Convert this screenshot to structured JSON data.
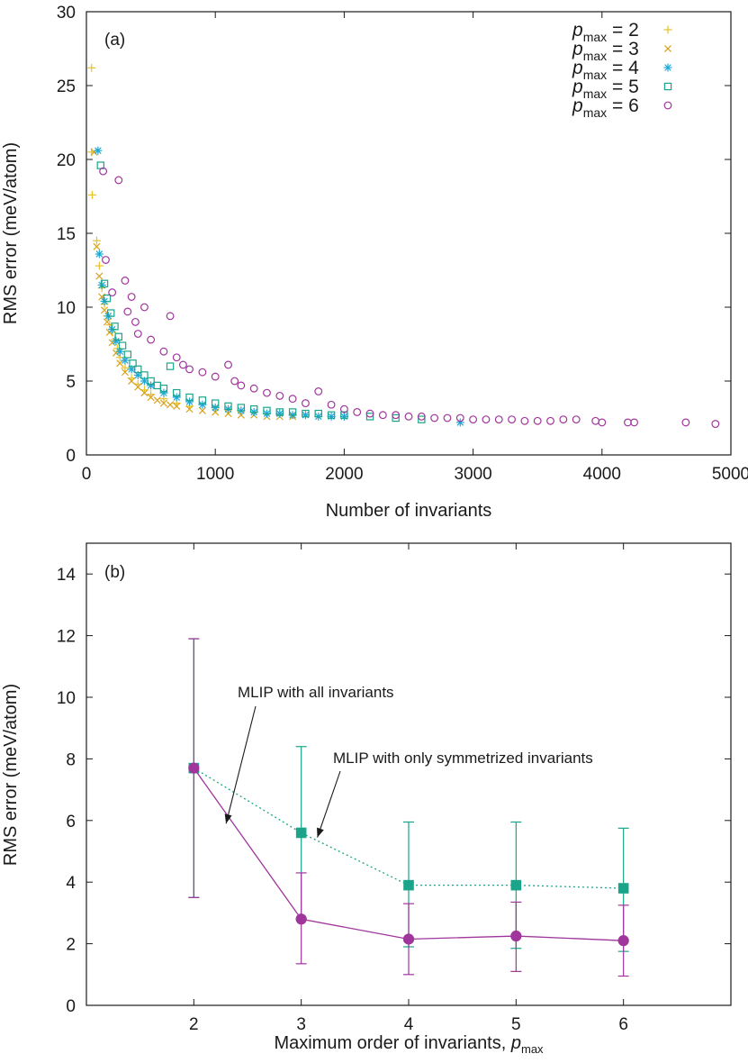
{
  "chart_data": [
    {
      "panel_label": "(a)",
      "type": "scatter",
      "xlabel": "Number of invariants",
      "ylabel": "RMS error (meV/atom)",
      "xlim": [
        0,
        5000
      ],
      "ylim": [
        0,
        30
      ],
      "xticks": [
        0,
        1000,
        2000,
        3000,
        4000,
        5000
      ],
      "yticks": [
        0,
        5,
        10,
        15,
        20,
        25,
        30
      ],
      "legend": {
        "position": "top-right",
        "symbol": "p",
        "subscript": "max",
        "entries": [
          "p_max = 2",
          "p_max = 3",
          "p_max = 4",
          "p_max = 5",
          "p_max = 6"
        ]
      },
      "series": [
        {
          "name": "p_max = 2",
          "value": "2",
          "marker": "plus",
          "color": "#e6c229",
          "points": [
            [
              40,
              26.2
            ],
            [
              40,
              20.5
            ],
            [
              45,
              17.6
            ],
            [
              80,
              14.5
            ],
            [
              100,
              12.8
            ],
            [
              120,
              11.3
            ],
            [
              140,
              10.2
            ],
            [
              160,
              9.4
            ],
            [
              180,
              8.8
            ],
            [
              200,
              8.3
            ],
            [
              220,
              7.8
            ],
            [
              240,
              7.2
            ],
            [
              260,
              6.6
            ],
            [
              300,
              5.9
            ],
            [
              350,
              5.2
            ],
            [
              400,
              4.8
            ],
            [
              450,
              4.4
            ],
            [
              500,
              4.1
            ],
            [
              600,
              3.8
            ],
            [
              700,
              3.5
            ],
            [
              800,
              3.3
            ]
          ]
        },
        {
          "name": "p_max = 3",
          "value": "3",
          "marker": "cross",
          "color": "#d9a21b",
          "points": [
            [
              60,
              20.5
            ],
            [
              80,
              14.1
            ],
            [
              100,
              12.1
            ],
            [
              120,
              10.7
            ],
            [
              140,
              9.8
            ],
            [
              160,
              9.0
            ],
            [
              180,
              8.3
            ],
            [
              200,
              7.6
            ],
            [
              230,
              6.9
            ],
            [
              260,
              6.2
            ],
            [
              300,
              5.6
            ],
            [
              350,
              5.0
            ],
            [
              400,
              4.6
            ],
            [
              450,
              4.2
            ],
            [
              500,
              3.9
            ],
            [
              550,
              3.7
            ],
            [
              600,
              3.5
            ],
            [
              650,
              3.4
            ],
            [
              700,
              3.3
            ],
            [
              800,
              3.1
            ],
            [
              900,
              3.0
            ],
            [
              1000,
              2.9
            ],
            [
              1100,
              2.8
            ],
            [
              1200,
              2.7
            ],
            [
              1300,
              2.7
            ],
            [
              1400,
              2.6
            ],
            [
              1500,
              2.6
            ],
            [
              1600,
              2.6
            ]
          ]
        },
        {
          "name": "p_max = 4",
          "value": "4",
          "marker": "star",
          "color": "#1fa8d6",
          "points": [
            [
              90,
              20.6
            ],
            [
              100,
              13.6
            ],
            [
              120,
              11.5
            ],
            [
              140,
              10.4
            ],
            [
              170,
              9.4
            ],
            [
              200,
              8.5
            ],
            [
              230,
              7.7
            ],
            [
              260,
              7.0
            ],
            [
              300,
              6.4
            ],
            [
              350,
              5.8
            ],
            [
              400,
              5.4
            ],
            [
              450,
              5.0
            ],
            [
              500,
              4.7
            ],
            [
              600,
              4.2
            ],
            [
              700,
              3.9
            ],
            [
              800,
              3.6
            ],
            [
              900,
              3.4
            ],
            [
              1000,
              3.2
            ],
            [
              1100,
              3.1
            ],
            [
              1200,
              3.0
            ],
            [
              1300,
              2.9
            ],
            [
              1400,
              2.8
            ],
            [
              1500,
              2.8
            ],
            [
              1600,
              2.7
            ],
            [
              1700,
              2.7
            ],
            [
              1800,
              2.6
            ],
            [
              1900,
              2.6
            ],
            [
              2000,
              2.6
            ],
            [
              2900,
              2.2
            ]
          ]
        },
        {
          "name": "p_max = 5",
          "value": "5",
          "marker": "square",
          "color": "#1aa58a",
          "points": [
            [
              110,
              19.6
            ],
            [
              140,
              11.6
            ],
            [
              160,
              10.6
            ],
            [
              190,
              9.6
            ],
            [
              220,
              8.7
            ],
            [
              250,
              8.0
            ],
            [
              280,
              7.4
            ],
            [
              320,
              6.8
            ],
            [
              360,
              6.2
            ],
            [
              400,
              5.8
            ],
            [
              450,
              5.4
            ],
            [
              500,
              5.0
            ],
            [
              550,
              4.7
            ],
            [
              600,
              4.5
            ],
            [
              650,
              6.0
            ],
            [
              700,
              4.2
            ],
            [
              800,
              3.9
            ],
            [
              900,
              3.7
            ],
            [
              1000,
              3.5
            ],
            [
              1100,
              3.3
            ],
            [
              1200,
              3.2
            ],
            [
              1300,
              3.1
            ],
            [
              1400,
              3.0
            ],
            [
              1500,
              2.9
            ],
            [
              1600,
              2.9
            ],
            [
              1700,
              2.8
            ],
            [
              1800,
              2.8
            ],
            [
              1900,
              2.7
            ],
            [
              2000,
              2.7
            ],
            [
              2200,
              2.6
            ],
            [
              2400,
              2.5
            ],
            [
              2600,
              2.4
            ]
          ]
        },
        {
          "name": "p_max = 6",
          "value": "6",
          "marker": "circle",
          "color": "#a0359c",
          "points": [
            [
              130,
              19.2
            ],
            [
              250,
              18.6
            ],
            [
              150,
              13.2
            ],
            [
              200,
              11.0
            ],
            [
              300,
              11.8
            ],
            [
              350,
              10.7
            ],
            [
              320,
              9.7
            ],
            [
              380,
              9.0
            ],
            [
              450,
              10.0
            ],
            [
              400,
              8.2
            ],
            [
              500,
              7.8
            ],
            [
              650,
              9.4
            ],
            [
              600,
              7.0
            ],
            [
              700,
              6.6
            ],
            [
              750,
              6.1
            ],
            [
              800,
              5.8
            ],
            [
              900,
              5.6
            ],
            [
              1000,
              5.3
            ],
            [
              1100,
              6.1
            ],
            [
              1150,
              5.0
            ],
            [
              1200,
              4.7
            ],
            [
              1300,
              4.5
            ],
            [
              1400,
              4.2
            ],
            [
              1500,
              4.0
            ],
            [
              1600,
              3.8
            ],
            [
              1700,
              3.5
            ],
            [
              1800,
              4.3
            ],
            [
              1900,
              3.4
            ],
            [
              2000,
              3.1
            ],
            [
              2100,
              2.9
            ],
            [
              2200,
              2.8
            ],
            [
              2300,
              2.7
            ],
            [
              2400,
              2.7
            ],
            [
              2500,
              2.6
            ],
            [
              2600,
              2.6
            ],
            [
              2700,
              2.5
            ],
            [
              2800,
              2.5
            ],
            [
              2900,
              2.5
            ],
            [
              3000,
              2.4
            ],
            [
              3100,
              2.4
            ],
            [
              3200,
              2.4
            ],
            [
              3300,
              2.4
            ],
            [
              3400,
              2.3
            ],
            [
              3500,
              2.3
            ],
            [
              3600,
              2.3
            ],
            [
              3700,
              2.4
            ],
            [
              3800,
              2.4
            ],
            [
              3950,
              2.3
            ],
            [
              4000,
              2.2
            ],
            [
              4200,
              2.2
            ],
            [
              4250,
              2.2
            ],
            [
              4650,
              2.2
            ],
            [
              4880,
              2.1
            ]
          ]
        }
      ]
    },
    {
      "panel_label": "(b)",
      "type": "line",
      "xlabel": "Maximum order of invariants, ",
      "xlabel_symbol": "p",
      "xlabel_subscript": "max",
      "ylabel": "RMS error (meV/atom)",
      "xlim": [
        1,
        7
      ],
      "ylim": [
        0,
        15
      ],
      "xticks": [
        2,
        3,
        4,
        5,
        6
      ],
      "yticks": [
        0,
        2,
        4,
        6,
        8,
        10,
        12,
        14
      ],
      "categories": [
        2,
        3,
        4,
        5,
        6
      ],
      "series": [
        {
          "name": "MLIP with only symmetrized invariants",
          "marker": "square",
          "color": "#1aa58a",
          "line_style": "dotted",
          "values": [
            7.7,
            5.6,
            3.9,
            3.9,
            3.8
          ],
          "err_low": [
            3.5,
            2.8,
            1.9,
            1.85,
            1.75
          ],
          "err_high": [
            11.9,
            8.4,
            5.95,
            5.95,
            5.75
          ]
        },
        {
          "name": "MLIP with all invariants",
          "marker": "circle",
          "color": "#a0359c",
          "line_style": "solid",
          "values": [
            7.7,
            2.8,
            2.15,
            2.25,
            2.1
          ],
          "err_low": [
            3.5,
            1.35,
            1.0,
            1.1,
            0.95
          ],
          "err_high": [
            11.9,
            4.3,
            3.3,
            3.35,
            3.25
          ]
        }
      ],
      "annotations": [
        {
          "text": "MLIP with all invariants",
          "target": [
            2.3,
            5.9
          ]
        },
        {
          "text": "MLIP with only symmetrized invariants",
          "target": [
            3.15,
            5.45
          ]
        }
      ]
    }
  ]
}
